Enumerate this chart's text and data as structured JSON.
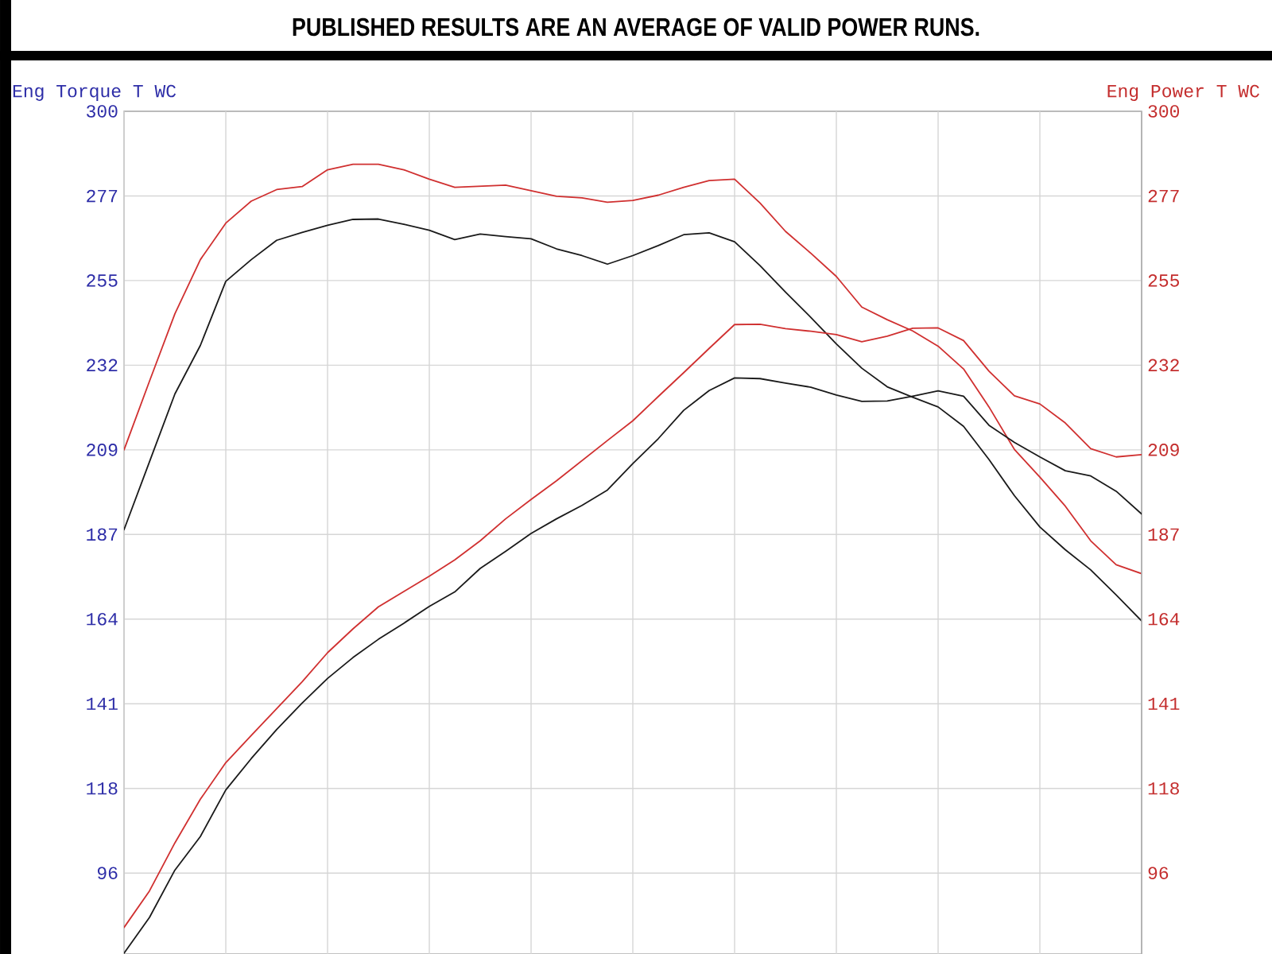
{
  "chart_data": {
    "type": "line",
    "title": "PUBLISHED RESULTS ARE AN AVERAGE OF VALID POWER RUNS.",
    "ylabel": "Eng Torque T WC",
    "y2label": "Eng Power T WC",
    "categories": [
      null,
      null,
      null,
      null,
      null,
      null,
      null,
      null,
      null,
      null,
      null,
      null,
      null,
      null,
      null,
      null,
      null,
      null,
      null,
      null,
      null,
      null,
      null,
      null,
      null,
      null,
      null,
      null,
      null,
      null,
      null,
      null,
      null,
      null,
      null,
      null,
      null,
      null,
      null,
      null,
      null
    ],
    "series": [
      {
        "color": "#d03030",
        "values": [
          209.2,
          227.6,
          245.7,
          260.2,
          270.0,
          275.9,
          279.0,
          279.8,
          284.3,
          285.8,
          285.8,
          284.3,
          281.8,
          279.6,
          279.9,
          280.2,
          278.7,
          277.2,
          276.8,
          275.6,
          276.1,
          277.5,
          279.6,
          281.4,
          281.8,
          275.4,
          267.8,
          261.9,
          255.7,
          247.5,
          244.1,
          241.1,
          237.0,
          230.9,
          220.7,
          209.3,
          201.9,
          194.1,
          184.8,
          178.4,
          176.0
        ]
      },
      {
        "color": "#1a1a1a",
        "values": [
          187.8,
          206.0,
          224.2,
          237.2,
          254.4,
          260.2,
          265.4,
          267.5,
          269.4,
          271.0,
          271.1,
          269.7,
          268.1,
          265.6,
          267.1,
          266.4,
          265.8,
          263.1,
          261.3,
          259.0,
          261.3,
          264.0,
          266.9,
          267.4,
          265.0,
          258.6,
          251.5,
          244.7,
          237.6,
          231.1,
          226.1,
          223.3,
          220.7,
          215.5,
          206.6,
          196.9,
          188.5,
          182.4,
          177.0,
          170.3,
          163.3
        ]
      },
      {
        "color": "#d03030",
        "axis": "y2",
        "values": [
          81.1,
          90.9,
          103.8,
          115.5,
          125.3,
          132.6,
          139.8,
          147.0,
          154.8,
          161.2,
          167.1,
          171.2,
          175.3,
          179.7,
          184.8,
          190.7,
          195.9,
          200.9,
          206.3,
          211.7,
          217.0,
          223.5,
          229.9,
          236.4,
          242.8,
          242.9,
          241.7,
          241.0,
          240.1,
          238.2,
          239.7,
          241.8,
          241.9,
          238.5,
          230.3,
          223.7,
          221.5,
          216.4,
          209.5,
          207.3,
          207.9
        ]
      },
      {
        "color": "#1a1a1a",
        "axis": "y2",
        "values": [
          74.2,
          83.8,
          96.5,
          105.5,
          118.0,
          126.4,
          134.2,
          141.3,
          147.9,
          153.5,
          158.4,
          162.7,
          167.2,
          171.1,
          177.4,
          182.0,
          186.8,
          190.7,
          194.3,
          198.4,
          205.5,
          212.2,
          219.8,
          225.1,
          228.5,
          228.3,
          227.1,
          226.0,
          223.9,
          222.2,
          222.3,
          223.6,
          225.0,
          223.6,
          215.8,
          211.2,
          207.3,
          203.6,
          202.2,
          198.1,
          192.0
        ]
      }
    ],
    "ylim": [
      74,
      300
    ],
    "yticks": [
      {
        "value": 95.7,
        "label": "96"
      },
      {
        "value": 118.4,
        "label": "118"
      },
      {
        "value": 141.1,
        "label": "141"
      },
      {
        "value": 163.8,
        "label": "164"
      },
      {
        "value": 186.5,
        "label": "187"
      },
      {
        "value": 209.2,
        "label": "209"
      },
      {
        "value": 231.9,
        "label": "232"
      },
      {
        "value": 254.6,
        "label": "255"
      },
      {
        "value": 277.3,
        "label": "277"
      },
      300
    ],
    "y2lim": [
      74,
      300
    ],
    "y2ticks": [
      {
        "value": 95.7,
        "label": "96"
      },
      {
        "value": 118.4,
        "label": "118"
      },
      {
        "value": 141.1,
        "label": "141"
      },
      {
        "value": 163.8,
        "label": "164"
      },
      {
        "value": 186.5,
        "label": "187"
      },
      {
        "value": 209.2,
        "label": "209"
      },
      {
        "value": 231.9,
        "label": "232"
      },
      {
        "value": 254.6,
        "label": "255"
      },
      {
        "value": 277.3,
        "label": "277"
      },
      300
    ],
    "grid": true
  }
}
